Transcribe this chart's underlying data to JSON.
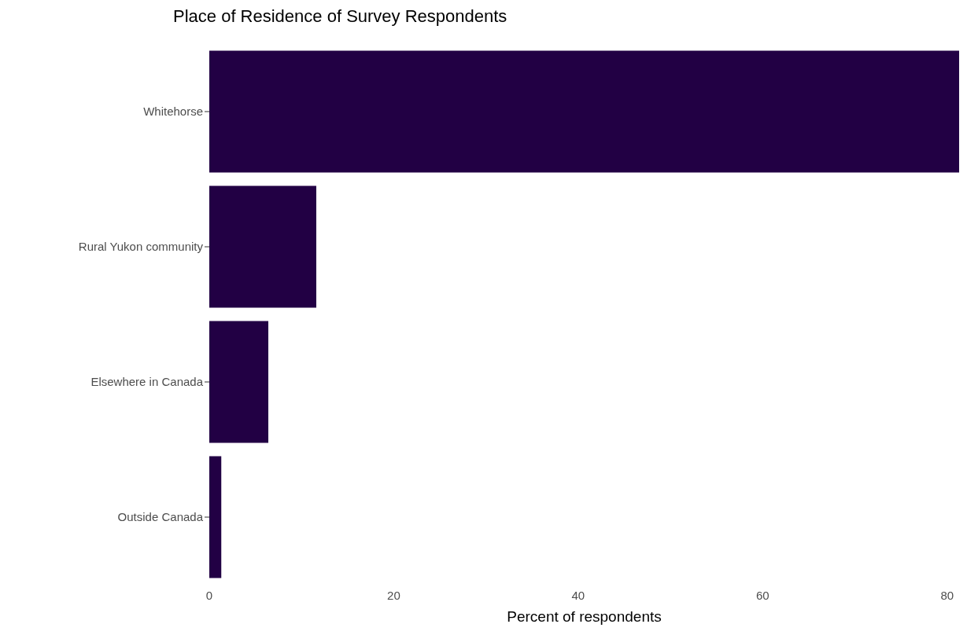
{
  "chart_data": {
    "type": "bar",
    "orientation": "horizontal",
    "title": "Place of Residence of Survey Respondents",
    "xlabel": "Percent of respondents",
    "categories": [
      "Whitehorse",
      "Rural Yukon community",
      "Elsewhere in Canada",
      "Outside Canada"
    ],
    "values": [
      81.3,
      11.6,
      6.4,
      1.3
    ],
    "color": "#220044",
    "xlim": [
      0,
      81.3
    ],
    "xticks": [
      0,
      20,
      40,
      60,
      80
    ],
    "grid": false,
    "legend": false
  }
}
